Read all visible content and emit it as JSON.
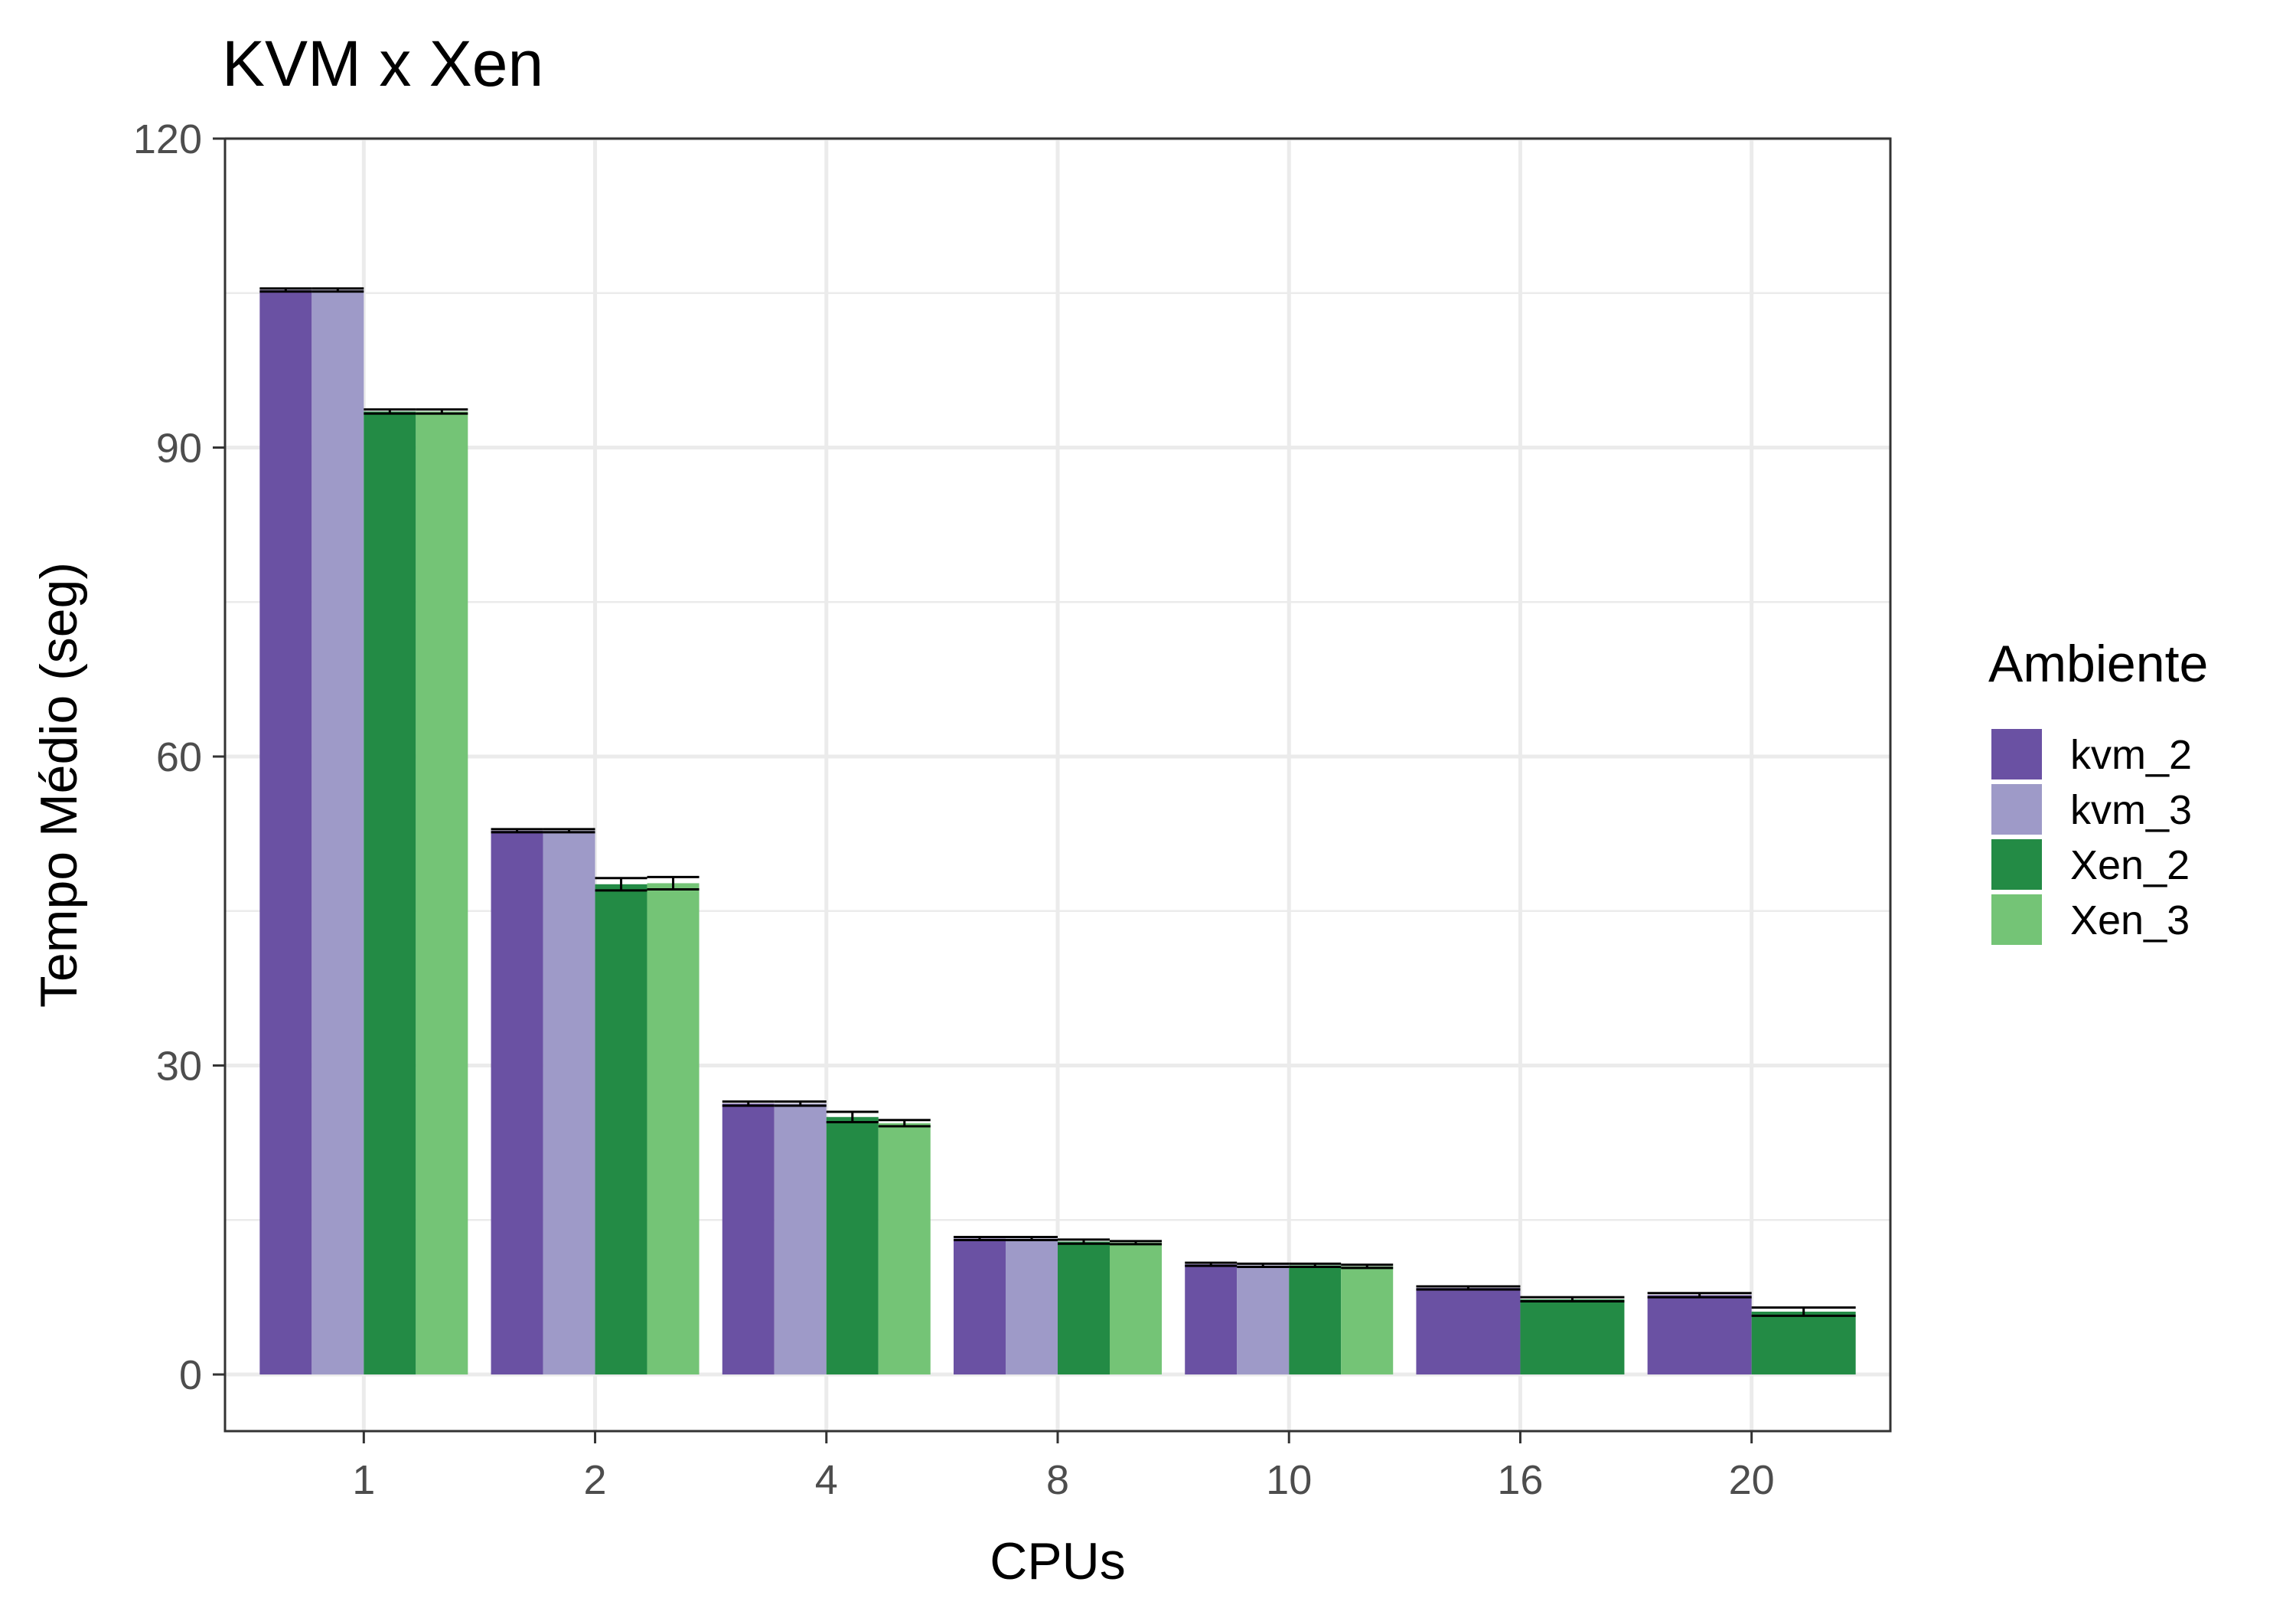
{
  "chart_data": {
    "type": "bar",
    "title": "KVM x Xen",
    "xlabel": "CPUs",
    "ylabel": "Tempo Médio (seg)",
    "ylim": [
      -5.5,
      120
    ],
    "yticks": [
      0,
      30,
      60,
      90,
      120
    ],
    "grid": true,
    "legend_title": "Ambiente",
    "legend_position": "right",
    "categories": [
      "1",
      "2",
      "4",
      "8",
      "10",
      "16",
      "20"
    ],
    "series": [
      {
        "name": "kvm_2",
        "color": "#6A51A3",
        "values": [
          105.3,
          52.8,
          26.3,
          13.2,
          10.7,
          8.4,
          7.7
        ]
      },
      {
        "name": "kvm_3",
        "color": "#9E9AC8",
        "values": [
          105.3,
          52.8,
          26.3,
          13.2,
          10.6,
          null,
          null
        ]
      },
      {
        "name": "Xen_2",
        "color": "#238B45",
        "values": [
          93.5,
          47.6,
          25.0,
          12.9,
          10.6,
          7.3,
          6.1
        ]
      },
      {
        "name": "Xen_3",
        "color": "#74C476",
        "values": [
          93.5,
          47.7,
          24.4,
          12.8,
          10.5,
          null,
          null
        ]
      }
    ],
    "errors": [
      [
        0.15,
        0.15,
        0.2,
        0.15,
        0.15,
        0.15,
        0.2
      ],
      [
        0.15,
        0.15,
        0.2,
        0.15,
        0.15,
        null,
        null
      ],
      [
        0.2,
        0.6,
        0.5,
        0.2,
        0.15,
        0.2,
        0.4
      ],
      [
        0.2,
        0.6,
        0.3,
        0.15,
        0.15,
        null,
        null
      ]
    ]
  }
}
